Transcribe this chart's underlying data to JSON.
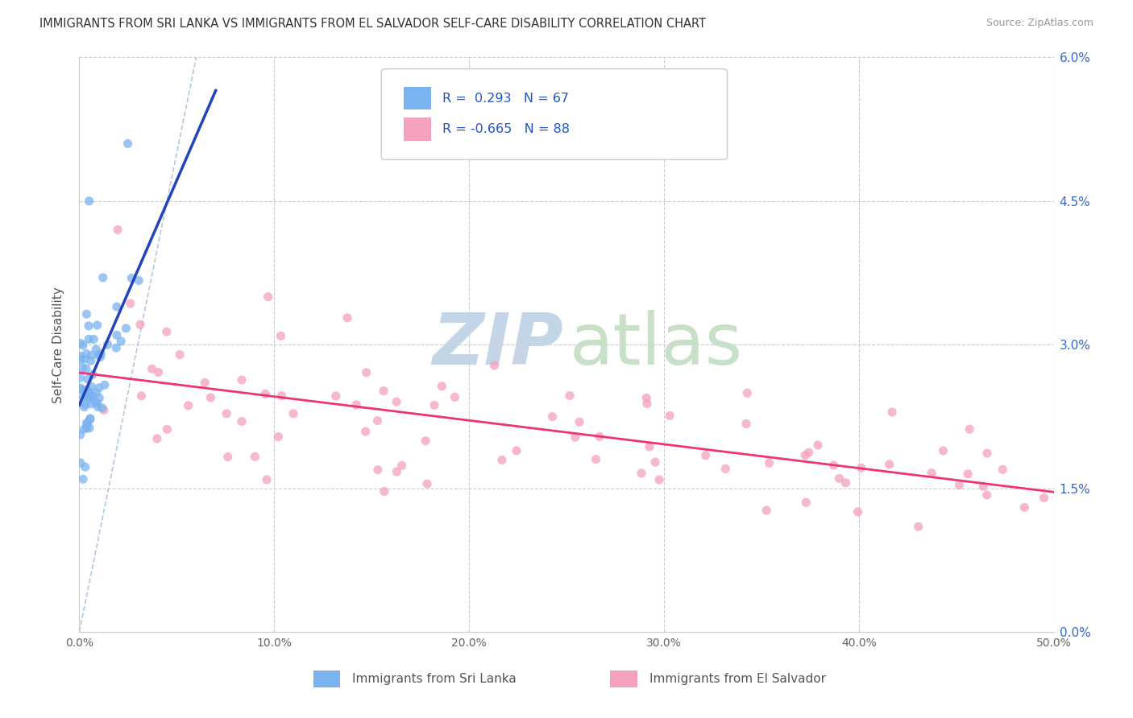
{
  "title": "IMMIGRANTS FROM SRI LANKA VS IMMIGRANTS FROM EL SALVADOR SELF-CARE DISABILITY CORRELATION CHART",
  "source": "Source: ZipAtlas.com",
  "ylabel": "Self-Care Disability",
  "ytick_vals": [
    0.0,
    1.5,
    3.0,
    4.5,
    6.0
  ],
  "xtick_vals": [
    0,
    10,
    20,
    30,
    40,
    50
  ],
  "xlim": [
    0.0,
    50.0
  ],
  "ylim": [
    0.0,
    6.0
  ],
  "sri_lanka_R": 0.293,
  "sri_lanka_N": 67,
  "el_salvador_R": -0.665,
  "el_salvador_N": 88,
  "sri_lanka_color": "#7ab3f0",
  "el_salvador_color": "#f5a0be",
  "sri_lanka_line_color": "#2244bb",
  "el_salvador_line_color": "#ee3377",
  "diagonal_color": "#aac4dd",
  "background_color": "#ffffff",
  "grid_color": "#cccccc",
  "watermark_zip_color": "#c5d5e8",
  "watermark_atlas_color": "#c8dfc8",
  "right_tick_color": "#3366cc",
  "legend_text_color": "#2255cc",
  "bottom_label_color": "#555555"
}
